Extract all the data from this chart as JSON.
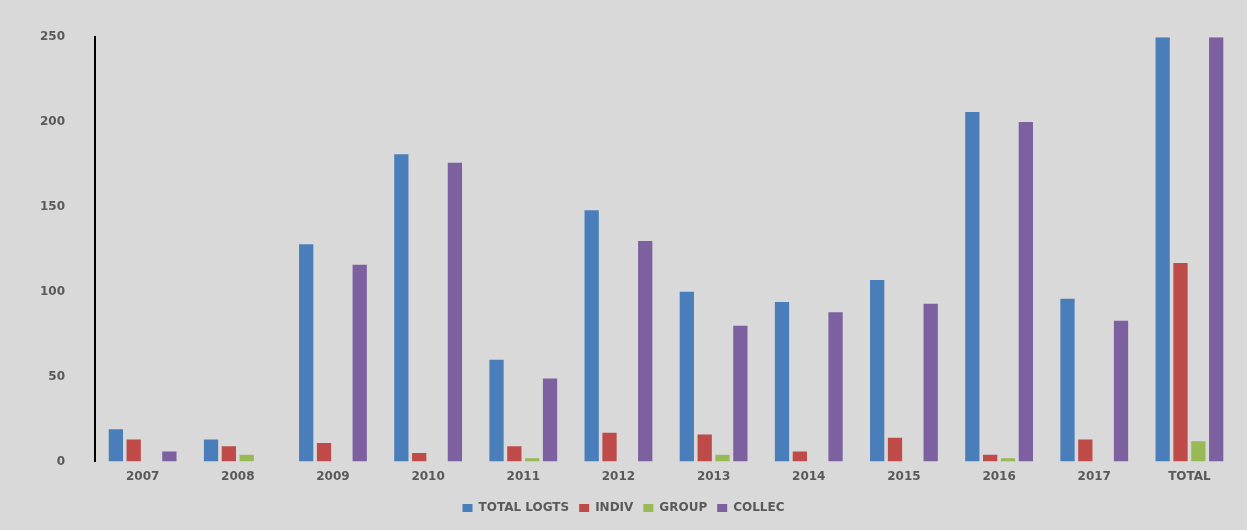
{
  "chart_data": {
    "type": "bar",
    "categories": [
      "2007",
      "2008",
      "2009",
      "2010",
      "2011",
      "2012",
      "2013",
      "2014",
      "2015",
      "2016",
      "2017",
      "TOTAL"
    ],
    "series": [
      {
        "name": "TOTAL LOGTS",
        "color": "#4a7ebb",
        "values": [
          19,
          13,
          128,
          181,
          60,
          148,
          100,
          94,
          107,
          206,
          96,
          250
        ]
      },
      {
        "name": "INDIV",
        "color": "#be4b48",
        "values": [
          13,
          9,
          11,
          5,
          9,
          17,
          16,
          6,
          14,
          4,
          13,
          117
        ]
      },
      {
        "name": "GROUP",
        "color": "#98b954",
        "values": [
          null,
          4,
          null,
          null,
          2,
          null,
          4,
          null,
          null,
          2,
          null,
          12
        ]
      },
      {
        "name": "COLLEC",
        "color": "#7d60a0",
        "values": [
          6,
          null,
          116,
          176,
          49,
          130,
          80,
          88,
          93,
          200,
          83,
          250
        ]
      }
    ],
    "ylim": [
      0,
      250
    ],
    "yticks": [
      0,
      50,
      100,
      150,
      200,
      250
    ],
    "grid": false,
    "legend": "bottom"
  }
}
